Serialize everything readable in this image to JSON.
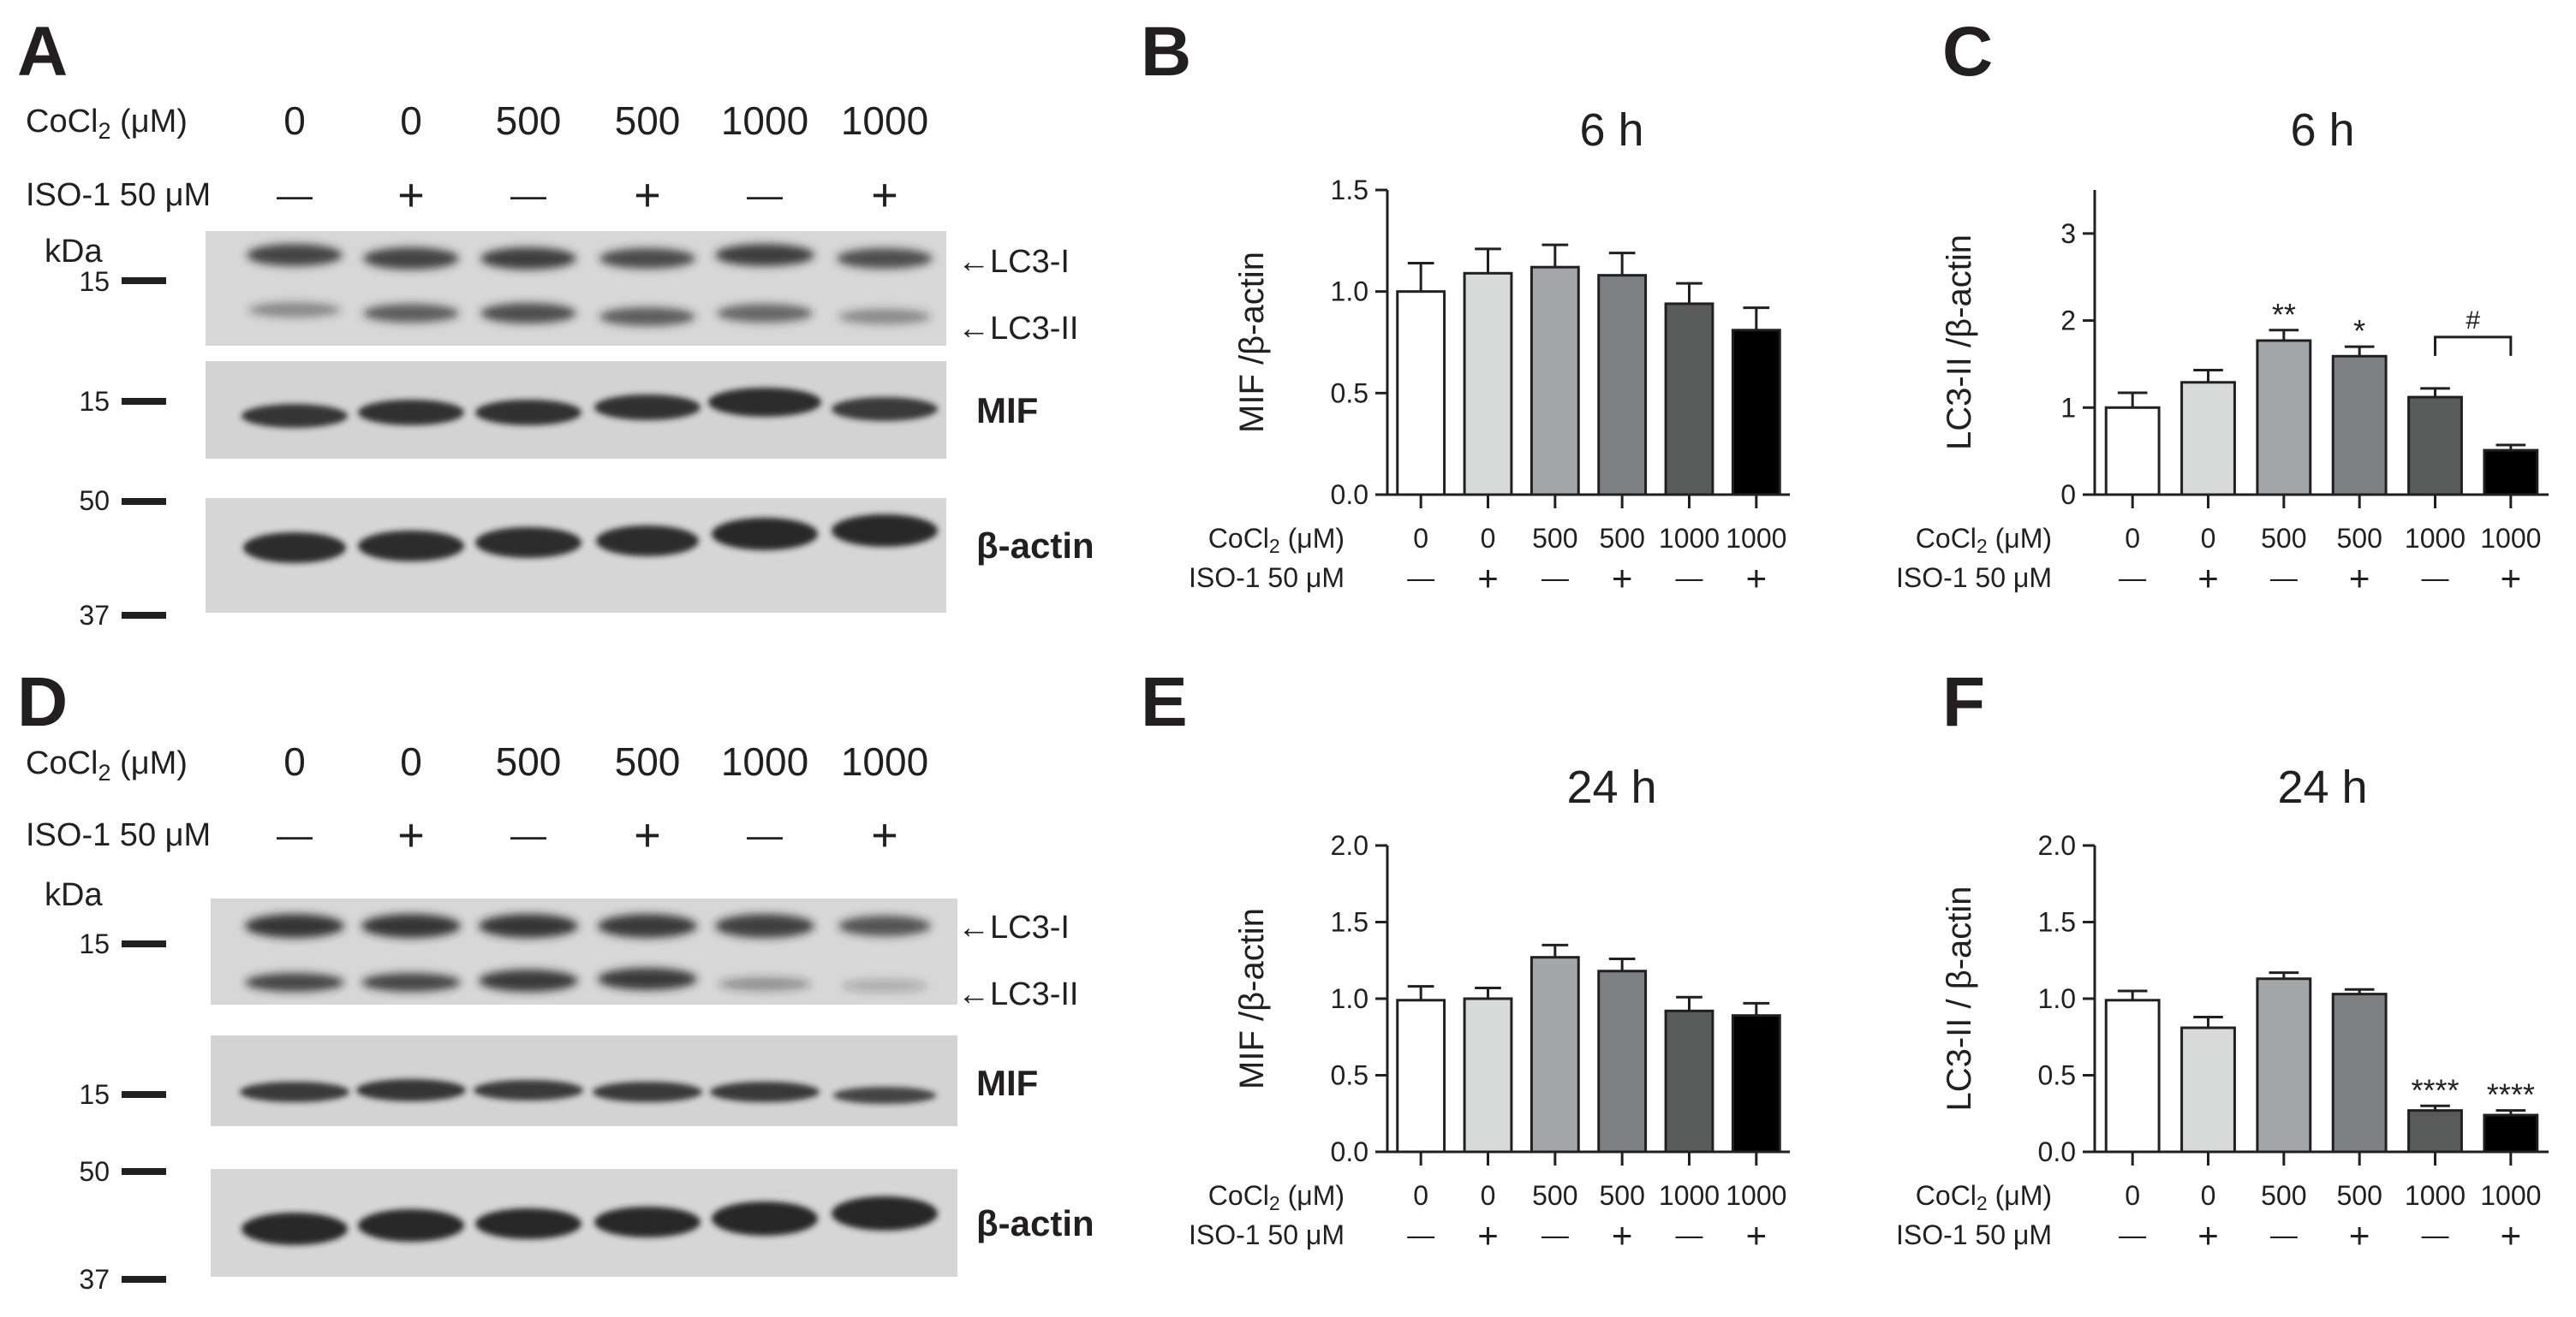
{
  "figure": {
    "panel_letters": [
      "A",
      "B",
      "C",
      "D",
      "E",
      "F"
    ],
    "treatment": {
      "cocl2_label_prefix": "CoCl",
      "cocl2_label_sub": "2",
      "cocl2_label_suffix": " (μM)",
      "iso1_label": "ISO-1 50 μM",
      "cocl2_values": [
        "0",
        "0",
        "500",
        "500",
        "1000",
        "1000"
      ],
      "iso1_values": [
        "—",
        "+",
        "—",
        "+",
        "—",
        "+"
      ]
    },
    "blots": [
      {
        "panel": "A",
        "kda_label": "kDa",
        "markers": [
          "15",
          "15",
          "50",
          "37"
        ],
        "bands": [
          "←LC3-I",
          "←LC3-II",
          "MIF",
          "β-actin"
        ]
      },
      {
        "panel": "D",
        "kda_label": "kDa",
        "markers": [
          "15",
          "15",
          "50",
          "37"
        ],
        "bands": [
          "←LC3-I",
          "←LC3-II",
          "MIF",
          "β-actin"
        ]
      }
    ]
  },
  "chart_data": [
    {
      "panel": "B",
      "type": "bar",
      "title": "6 h",
      "ylabel": "MIF /β-actin",
      "ylim": [
        0,
        1.5
      ],
      "yticks": [
        "0.0",
        "0.5",
        "1.0",
        "1.5"
      ],
      "categories": [
        "0 / —",
        "0 / +",
        "500 / —",
        "500 / +",
        "1000 / —",
        "1000 / +"
      ],
      "values": [
        1.0,
        1.09,
        1.12,
        1.08,
        0.94,
        0.81
      ],
      "errors": [
        0.14,
        0.12,
        0.11,
        0.11,
        0.1,
        0.11
      ],
      "annotations": [
        "",
        "",
        "",
        "",
        "",
        ""
      ],
      "bar_colors": [
        "#ffffff",
        "#d9dbdb",
        "#a4a7a7",
        "#7e8181",
        "#595b5b",
        "#000000"
      ],
      "bracket": null
    },
    {
      "panel": "C",
      "type": "bar",
      "title": "6 h",
      "ylabel": "LC3-II /β-actin",
      "ylim": [
        0,
        3.5
      ],
      "yticks": [
        "0",
        "1",
        "2",
        "3"
      ],
      "categories": [
        "0 / —",
        "0 / +",
        "500 / —",
        "500 / +",
        "1000 / —",
        "1000 / +"
      ],
      "values": [
        1.0,
        1.29,
        1.77,
        1.59,
        1.12,
        0.51
      ],
      "errors": [
        0.17,
        0.14,
        0.12,
        0.11,
        0.1,
        0.06
      ],
      "annotations": [
        "",
        "",
        "**",
        "*",
        "",
        ""
      ],
      "bar_colors": [
        "#ffffff",
        "#d9dbdb",
        "#a4a7a7",
        "#7e8181",
        "#595b5b",
        "#000000"
      ],
      "bracket": {
        "from": 4,
        "to": 5,
        "label": "#"
      }
    },
    {
      "panel": "E",
      "type": "bar",
      "title": "24 h",
      "ylabel": "MIF /β-actin",
      "ylim": [
        0,
        2.0
      ],
      "yticks": [
        "0.0",
        "0.5",
        "1.0",
        "1.5",
        "2.0"
      ],
      "categories": [
        "0 / —",
        "0 / +",
        "500 / —",
        "500 / +",
        "1000 / —",
        "1000 / +"
      ],
      "values": [
        0.99,
        1.0,
        1.27,
        1.18,
        0.92,
        0.89
      ],
      "errors": [
        0.09,
        0.07,
        0.08,
        0.08,
        0.09,
        0.08
      ],
      "annotations": [
        "",
        "",
        "",
        "",
        "",
        ""
      ],
      "bar_colors": [
        "#ffffff",
        "#d9dbdb",
        "#a4a7a7",
        "#7e8181",
        "#595b5b",
        "#000000"
      ],
      "bracket": null
    },
    {
      "panel": "F",
      "type": "bar",
      "title": "24 h",
      "ylabel": "LC3-II / β-actin",
      "ylim": [
        0,
        2.0
      ],
      "yticks": [
        "0.0",
        "0.5",
        "1.0",
        "1.5",
        "2.0"
      ],
      "categories": [
        "0 / —",
        "0 / +",
        "500 / —",
        "500 / +",
        "1000 / —",
        "1000 / +"
      ],
      "values": [
        0.99,
        0.81,
        1.13,
        1.03,
        0.27,
        0.24
      ],
      "errors": [
        0.06,
        0.07,
        0.04,
        0.03,
        0.03,
        0.03
      ],
      "annotations": [
        "",
        "",
        "",
        "",
        "****",
        "****"
      ],
      "bar_colors": [
        "#ffffff",
        "#d9dbdb",
        "#a4a7a7",
        "#7e8181",
        "#595b5b",
        "#000000"
      ],
      "bracket": null
    }
  ]
}
